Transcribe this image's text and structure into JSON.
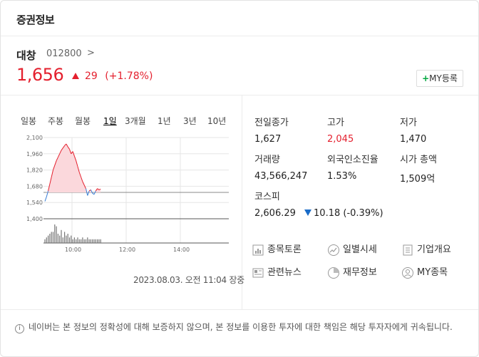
{
  "header": {
    "title": "증권정보"
  },
  "stock": {
    "name": "대창",
    "code": "012800",
    "code_chevron": ">",
    "price": "1,656",
    "change": "29",
    "change_pct": "(+1.78%)",
    "my_button": "MY등록",
    "my_plus": "+"
  },
  "periods": [
    "일봉",
    "주봉",
    "월봉",
    "1일",
    "3개월",
    "1년",
    "3년",
    "10년"
  ],
  "active_period": "1일",
  "chart_data": {
    "type": "area",
    "y_ticks": [
      "2,100",
      "1,960",
      "1,820",
      "1,680",
      "1,540",
      "1,400"
    ],
    "x_ticks": [
      "10:00",
      "12:00",
      "14:00"
    ],
    "prev_close": 1627,
    "ylim": [
      1400,
      2100
    ],
    "price_series": [
      1550,
      1590,
      1640,
      1700,
      1760,
      1820,
      1860,
      1900,
      1930,
      1960,
      1990,
      2010,
      2030,
      2045,
      2020,
      2000,
      1960,
      1980,
      1940,
      1900,
      1850,
      1800,
      1760,
      1720,
      1690,
      1660,
      1600,
      1640,
      1650,
      1620,
      1610,
      1640,
      1660,
      1650,
      1656
    ],
    "volume_series": [
      2,
      3,
      4,
      5,
      6,
      6,
      10,
      9,
      5,
      4,
      7,
      3,
      6,
      4,
      5,
      3,
      4,
      2,
      3,
      2,
      3,
      2,
      2,
      3,
      2,
      2,
      3,
      2,
      2,
      2,
      2,
      2,
      2,
      2,
      2
    ],
    "colors": {
      "up": "#e4202e",
      "down": "#3a7fd6",
      "fill": "#fbd8dc",
      "grid": "#e6e6e6",
      "base": "#888888"
    }
  },
  "timestamp": "2023.08.03. 오전 11:04 장중",
  "metrics": [
    {
      "label": "전일종가",
      "value": "1,627",
      "red": false
    },
    {
      "label": "고가",
      "value": "2,045",
      "red": true
    },
    {
      "label": "저가",
      "value": "1,470",
      "red": false
    },
    {
      "label": "거래량",
      "value": "43,566,247",
      "red": false
    },
    {
      "label": "외국인소진율",
      "value": "1.53%",
      "red": false
    },
    {
      "label": "시가 총액",
      "value": "1,509억",
      "red": false
    }
  ],
  "kospi": {
    "label": "코스피",
    "value": "2,606.29",
    "change": "10.18",
    "change_pct": "(-0.39%)"
  },
  "links": [
    {
      "label": "종목토론",
      "icon": "chart-bars-icon"
    },
    {
      "label": "일별시세",
      "icon": "trend-up-icon"
    },
    {
      "label": "기업개요",
      "icon": "list-icon"
    },
    {
      "label": "관련뉴스",
      "icon": "news-icon"
    },
    {
      "label": "재무정보",
      "icon": "pie-chart-icon"
    },
    {
      "label": "MY종목",
      "icon": "user-icon"
    }
  ],
  "notice": {
    "icon": "i",
    "text": "네이버는 본 정보의 정확성에 대해 보증하지 않으며, 본 정보를 이용한 투자에 대한 책임은 해당 투자자에게 귀속됩니다."
  }
}
